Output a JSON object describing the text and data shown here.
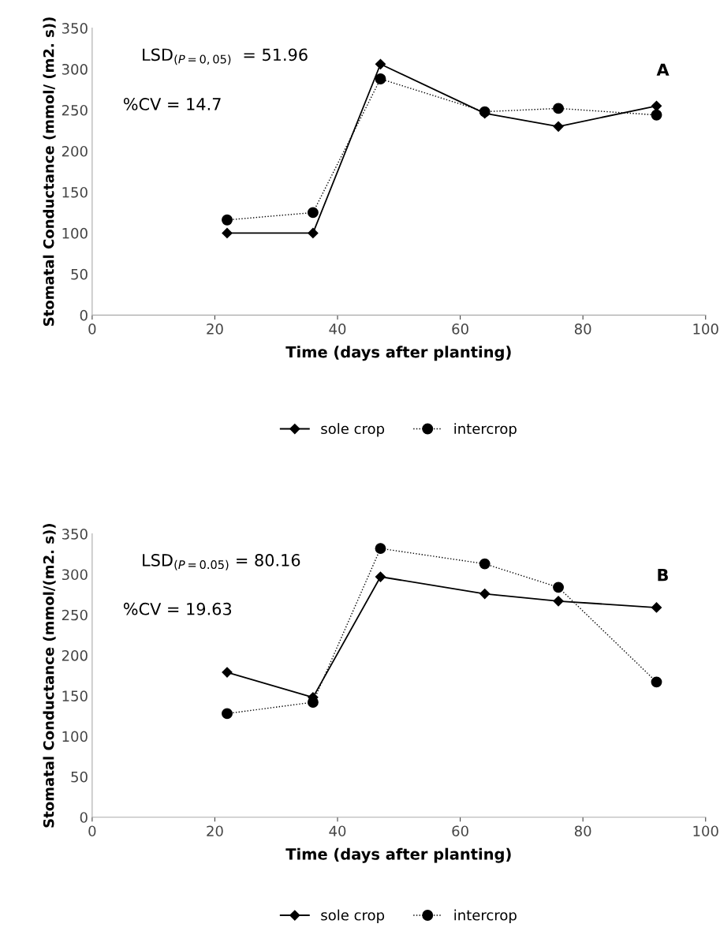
{
  "chart_data": [
    {
      "type": "line",
      "xlabel": "Time (days after planting)",
      "ylabel": "Stomatal Conductance (mmol/ (m2. s))",
      "x": [
        22,
        36,
        47,
        64,
        76,
        92
      ],
      "xlim": [
        0,
        100
      ],
      "xticks": [
        0,
        20,
        40,
        60,
        80,
        100
      ],
      "ylim": [
        0,
        350
      ],
      "yticks": [
        0,
        50,
        100,
        150,
        200,
        250,
        300,
        350
      ],
      "series": [
        {
          "name": "sole crop",
          "color": "#000000",
          "marker": "diamond",
          "line_style": "solid",
          "values": [
            100,
            100,
            306,
            246,
            230,
            255
          ]
        },
        {
          "name": "intercrop",
          "color": "#000000",
          "marker": "circle",
          "line_style": "dotted",
          "values": [
            116,
            125,
            288,
            248,
            252,
            244
          ]
        }
      ],
      "annotations": [
        "LSD$_{(P=0,05)}$  = 51.96",
        "%CV = 14.7",
        "A"
      ],
      "grid": false,
      "legend": "bottom"
    },
    {
      "type": "line",
      "xlabel": "Time (days after planting)",
      "ylabel": "Stomatal Conductance (mmol/(m2. s))",
      "x": [
        22,
        36,
        47,
        64,
        76,
        92
      ],
      "xlim": [
        0,
        100
      ],
      "xticks": [
        0,
        20,
        40,
        60,
        80,
        100
      ],
      "ylim": [
        0,
        350
      ],
      "yticks": [
        0,
        50,
        100,
        150,
        200,
        250,
        300,
        350
      ],
      "series": [
        {
          "name": "sole crop",
          "color": "#000000",
          "marker": "diamond",
          "line_style": "solid",
          "values": [
            179,
            148,
            297,
            276,
            267,
            259
          ]
        },
        {
          "name": "intercrop",
          "color": "#000000",
          "marker": "circle",
          "line_style": "dotted",
          "values": [
            128,
            142,
            332,
            313,
            284,
            167
          ]
        }
      ],
      "annotations": [
        "LSD$_{(P=0.05)}$ = 80.16",
        "%CV = 19.63",
        "B"
      ],
      "grid": false,
      "legend": "bottom"
    }
  ]
}
